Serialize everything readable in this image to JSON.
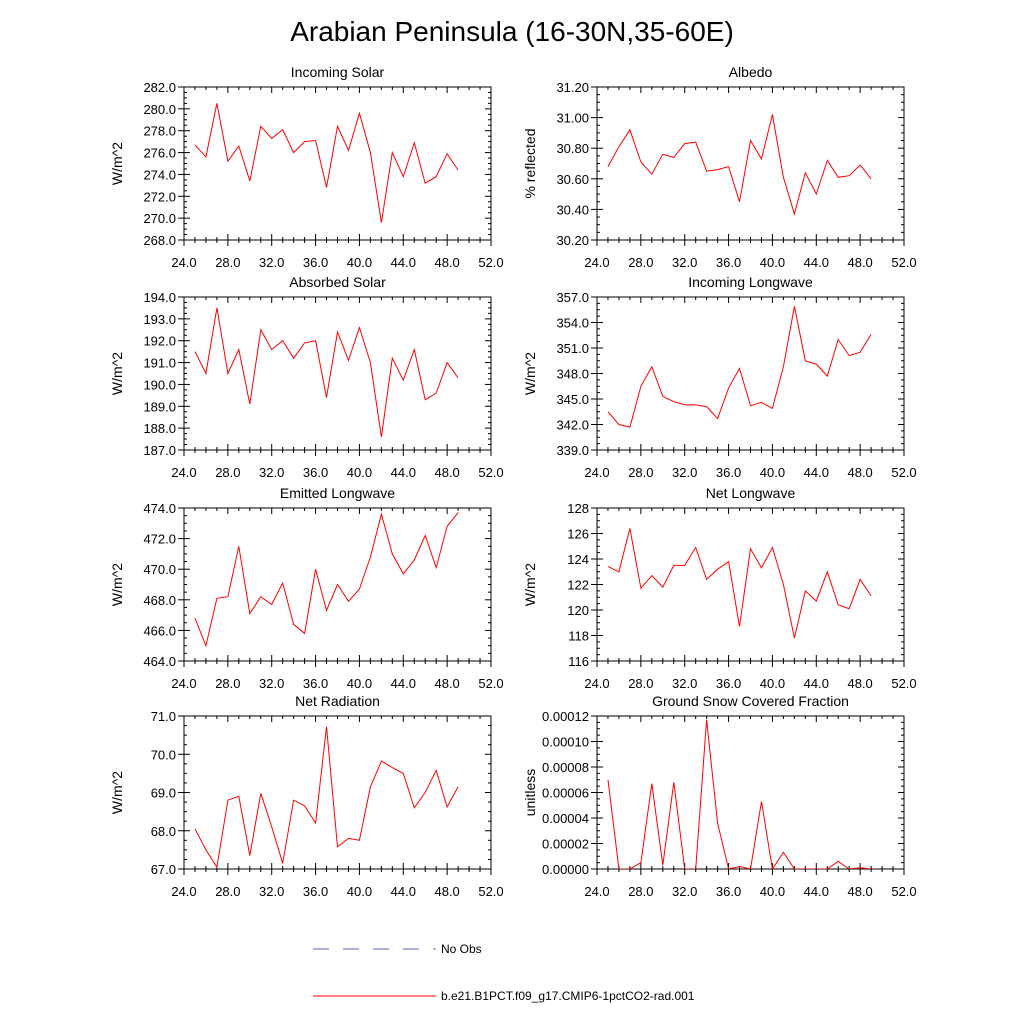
{
  "figure": {
    "title": "Arabian Peninsula (16-30N,35-60E)",
    "line_color": "#ff0000",
    "obs_color": "#5a6ab4",
    "legend": {
      "obs_label": "No Obs",
      "model_label": "b.e21.B1PCT.f09_g17.CMIP6-1pctCO2-rad.001"
    }
  },
  "chart_data": [
    {
      "type": "line",
      "title": "Incoming Solar",
      "ylabel": "W/m^2",
      "xlim": [
        24,
        52
      ],
      "xticks": [
        "24.0",
        "28.0",
        "32.0",
        "36.0",
        "40.0",
        "44.0",
        "48.0",
        "52.0"
      ],
      "ylim": [
        268,
        282
      ],
      "yticks": [
        "268.0",
        "270.0",
        "272.0",
        "274.0",
        "276.0",
        "278.0",
        "280.0",
        "282.0"
      ],
      "x": [
        25,
        26,
        27,
        28,
        29,
        30,
        31,
        32,
        33,
        34,
        35,
        36,
        37,
        38,
        39,
        40,
        41,
        42,
        43,
        44,
        45,
        46,
        47,
        48,
        49
      ],
      "series": [
        {
          "values": [
            276.7,
            275.6,
            280.5,
            275.2,
            276.6,
            273.4,
            278.4,
            277.3,
            278.1,
            276.0,
            277.0,
            277.1,
            272.8,
            278.4,
            276.2,
            279.6,
            276.0,
            269.6,
            276.0,
            273.8,
            276.9,
            273.2,
            273.8,
            275.9,
            274.4
          ]
        }
      ]
    },
    {
      "type": "line",
      "title": "Albedo",
      "ylabel": "% reflected",
      "xlim": [
        24,
        52
      ],
      "xticks": [
        "24.0",
        "28.0",
        "32.0",
        "36.0",
        "40.0",
        "44.0",
        "48.0",
        "52.0"
      ],
      "ylim": [
        30.2,
        31.2
      ],
      "yticks": [
        "30.20",
        "30.40",
        "30.60",
        "30.80",
        "31.00",
        "31.20"
      ],
      "x": [
        25,
        26,
        27,
        28,
        29,
        30,
        31,
        32,
        33,
        34,
        35,
        36,
        37,
        38,
        39,
        40,
        41,
        42,
        43,
        44,
        45,
        46,
        47,
        48,
        49
      ],
      "series": [
        {
          "values": [
            30.68,
            30.81,
            30.92,
            30.71,
            30.63,
            30.76,
            30.74,
            30.83,
            30.84,
            30.65,
            30.66,
            30.68,
            30.45,
            30.85,
            30.73,
            31.02,
            30.61,
            30.37,
            30.64,
            30.5,
            30.72,
            30.61,
            30.62,
            30.69,
            30.6
          ]
        }
      ]
    },
    {
      "type": "line",
      "title": "Absorbed Solar",
      "ylabel": "W/m^2",
      "xlim": [
        24,
        52
      ],
      "xticks": [
        "24.0",
        "28.0",
        "32.0",
        "36.0",
        "40.0",
        "44.0",
        "48.0",
        "52.0"
      ],
      "ylim": [
        187,
        194
      ],
      "yticks": [
        "187.0",
        "188.0",
        "189.0",
        "190.0",
        "191.0",
        "192.0",
        "193.0",
        "194.0"
      ],
      "x": [
        25,
        26,
        27,
        28,
        29,
        30,
        31,
        32,
        33,
        34,
        35,
        36,
        37,
        38,
        39,
        40,
        41,
        42,
        43,
        44,
        45,
        46,
        47,
        48,
        49
      ],
      "series": [
        {
          "values": [
            191.5,
            190.5,
            193.5,
            190.5,
            191.6,
            189.1,
            192.5,
            191.6,
            192.0,
            191.2,
            191.9,
            192.0,
            189.4,
            192.4,
            191.1,
            192.6,
            191.0,
            187.6,
            191.2,
            190.2,
            191.6,
            189.3,
            189.6,
            191.0,
            190.3
          ]
        }
      ]
    },
    {
      "type": "line",
      "title": "Incoming Longwave",
      "ylabel": "W/m^2",
      "xlim": [
        24,
        52
      ],
      "xticks": [
        "24.0",
        "28.0",
        "32.0",
        "36.0",
        "40.0",
        "44.0",
        "48.0",
        "52.0"
      ],
      "ylim": [
        339,
        357
      ],
      "yticks": [
        "339.0",
        "342.0",
        "345.0",
        "348.0",
        "351.0",
        "354.0",
        "357.0"
      ],
      "x": [
        25,
        26,
        27,
        28,
        29,
        30,
        31,
        32,
        33,
        34,
        35,
        36,
        37,
        38,
        39,
        40,
        41,
        42,
        43,
        44,
        45,
        46,
        47,
        48,
        49
      ],
      "series": [
        {
          "values": [
            343.5,
            342.0,
            341.7,
            346.5,
            348.8,
            345.3,
            344.7,
            344.3,
            344.3,
            344.1,
            342.7,
            346.3,
            348.6,
            344.2,
            344.6,
            343.9,
            348.8,
            355.9,
            349.5,
            349.1,
            347.7,
            352.0,
            350.1,
            350.5,
            352.6
          ]
        }
      ]
    },
    {
      "type": "line",
      "title": "Emitted Longwave",
      "ylabel": "W/m^2",
      "xlim": [
        24,
        52
      ],
      "xticks": [
        "24.0",
        "28.0",
        "32.0",
        "36.0",
        "40.0",
        "44.0",
        "48.0",
        "52.0"
      ],
      "ylim": [
        464,
        474
      ],
      "yticks": [
        "464.0",
        "466.0",
        "468.0",
        "470.0",
        "472.0",
        "474.0"
      ],
      "x": [
        25,
        26,
        27,
        28,
        29,
        30,
        31,
        32,
        33,
        34,
        35,
        36,
        37,
        38,
        39,
        40,
        41,
        42,
        43,
        44,
        45,
        46,
        47,
        48,
        49
      ],
      "series": [
        {
          "values": [
            466.8,
            465.0,
            468.1,
            468.2,
            471.5,
            467.1,
            468.2,
            467.7,
            469.1,
            466.4,
            465.8,
            470.0,
            467.3,
            469.0,
            467.9,
            468.7,
            470.8,
            473.6,
            471.0,
            469.7,
            470.6,
            472.2,
            470.1,
            472.8,
            473.7
          ]
        }
      ]
    },
    {
      "type": "line",
      "title": "Net Longwave",
      "ylabel": "W/m^2",
      "xlim": [
        24,
        52
      ],
      "xticks": [
        "24.0",
        "28.0",
        "32.0",
        "36.0",
        "40.0",
        "44.0",
        "48.0",
        "52.0"
      ],
      "ylim": [
        116,
        128
      ],
      "yticks": [
        "116",
        "118",
        "120",
        "122",
        "124",
        "126",
        "128"
      ],
      "x": [
        25,
        26,
        27,
        28,
        29,
        30,
        31,
        32,
        33,
        34,
        35,
        36,
        37,
        38,
        39,
        40,
        41,
        42,
        43,
        44,
        45,
        46,
        47,
        48,
        49
      ],
      "series": [
        {
          "values": [
            123.4,
            123.0,
            126.4,
            121.7,
            122.7,
            121.8,
            123.5,
            123.5,
            124.9,
            122.4,
            123.2,
            123.8,
            118.7,
            124.8,
            123.3,
            124.9,
            122.0,
            117.8,
            121.5,
            120.7,
            123.0,
            120.4,
            120.1,
            122.4,
            121.1
          ]
        }
      ]
    },
    {
      "type": "line",
      "title": "Net Radiation",
      "ylabel": "W/m^2",
      "xlim": [
        24,
        52
      ],
      "xticks": [
        "24.0",
        "28.0",
        "32.0",
        "36.0",
        "40.0",
        "44.0",
        "48.0",
        "52.0"
      ],
      "ylim": [
        67,
        71
      ],
      "yticks": [
        "67.0",
        "68.0",
        "69.0",
        "70.0",
        "71.0"
      ],
      "x": [
        25,
        26,
        27,
        28,
        29,
        30,
        31,
        32,
        33,
        34,
        35,
        36,
        37,
        38,
        39,
        40,
        41,
        42,
        43,
        44,
        45,
        46,
        47,
        48,
        49
      ],
      "series": [
        {
          "values": [
            68.05,
            67.5,
            67.05,
            68.8,
            68.9,
            67.35,
            68.98,
            68.1,
            67.15,
            68.8,
            68.65,
            68.2,
            70.72,
            67.58,
            67.8,
            67.75,
            69.15,
            69.82,
            69.65,
            69.5,
            68.6,
            69.0,
            69.58,
            68.62,
            69.15
          ]
        }
      ]
    },
    {
      "type": "line",
      "title": "Ground Snow Covered Fraction",
      "ylabel": "unitless",
      "xlim": [
        24,
        52
      ],
      "xticks": [
        "24.0",
        "28.0",
        "32.0",
        "36.0",
        "40.0",
        "44.0",
        "48.0",
        "52.0"
      ],
      "ylim": [
        0,
        0.00012
      ],
      "yticks": [
        "0.00000",
        "0.00002",
        "0.00004",
        "0.00006",
        "0.00008",
        "0.00010",
        "0.00012"
      ],
      "x": [
        25,
        26,
        27,
        28,
        29,
        30,
        31,
        32,
        33,
        34,
        35,
        36,
        37,
        38,
        39,
        40,
        41,
        42,
        43,
        44,
        45,
        46,
        47,
        48,
        49
      ],
      "series": [
        {
          "values": [
            7e-05,
            0,
            0,
            5e-06,
            6.7e-05,
            3e-06,
            6.8e-05,
            0,
            0,
            0.000117,
            3.6e-05,
            0,
            2e-06,
            0,
            5.3e-05,
            0,
            1.3e-05,
            0,
            0,
            0,
            0,
            6e-06,
            0,
            1e-06,
            0
          ]
        }
      ]
    }
  ]
}
